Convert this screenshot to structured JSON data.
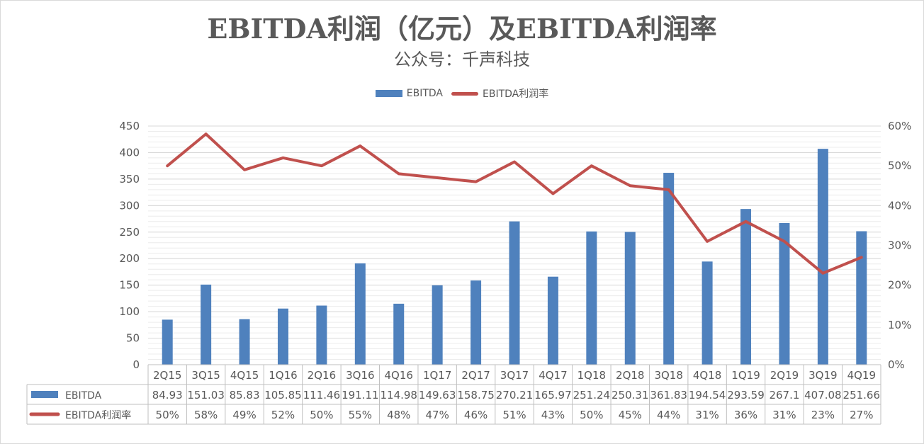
{
  "chart_data": {
    "type": "bar",
    "title": "EBITDA利润（亿元）及EBITDA利润率",
    "subtitle": "公众号：千声科技",
    "categories": [
      "2Q15",
      "3Q15",
      "4Q15",
      "1Q16",
      "2Q16",
      "3Q16",
      "4Q16",
      "1Q17",
      "2Q17",
      "3Q17",
      "4Q17",
      "1Q18",
      "2Q18",
      "3Q18",
      "4Q18",
      "1Q19",
      "2Q19",
      "3Q19",
      "4Q19"
    ],
    "series": [
      {
        "name": "EBITDA",
        "type": "bar",
        "axis": "left",
        "color": "#4f81bd",
        "values": [
          84.93,
          151.03,
          85.83,
          105.85,
          111.46,
          191.11,
          114.98,
          149.63,
          158.75,
          270.21,
          165.97,
          251.24,
          250.31,
          361.83,
          194.54,
          293.59,
          267.1,
          407.08,
          251.66
        ],
        "labels": [
          "84.93",
          "151.03",
          "85.83",
          "105.85",
          "111.46",
          "191.11",
          "114.98",
          "149.63",
          "158.75",
          "270.21",
          "165.97",
          "251.24",
          "250.31",
          "361.83",
          "194.54",
          "293.59",
          "267.1",
          "407.08",
          "251.66"
        ]
      },
      {
        "name": "EBITDA利润率",
        "type": "line",
        "axis": "right",
        "color": "#c0504d",
        "values": [
          0.5,
          0.58,
          0.49,
          0.52,
          0.5,
          0.55,
          0.48,
          0.47,
          0.46,
          0.51,
          0.43,
          0.5,
          0.45,
          0.44,
          0.31,
          0.36,
          0.31,
          0.23,
          0.27
        ],
        "labels": [
          "50%",
          "58%",
          "49%",
          "52%",
          "50%",
          "55%",
          "48%",
          "47%",
          "46%",
          "51%",
          "43%",
          "50%",
          "45%",
          "44%",
          "31%",
          "36%",
          "31%",
          "23%",
          "27%"
        ]
      }
    ],
    "ylim_left": [
      0,
      450
    ],
    "yticks_left": [
      "0",
      "50",
      "100",
      "150",
      "200",
      "250",
      "300",
      "350",
      "400",
      "450"
    ],
    "ylim_right": [
      0,
      0.6
    ],
    "yticks_right": [
      "0%",
      "10%",
      "20%",
      "30%",
      "40%",
      "50%",
      "60%"
    ],
    "legend_position": "top-center",
    "grid": true,
    "data_table": true
  }
}
